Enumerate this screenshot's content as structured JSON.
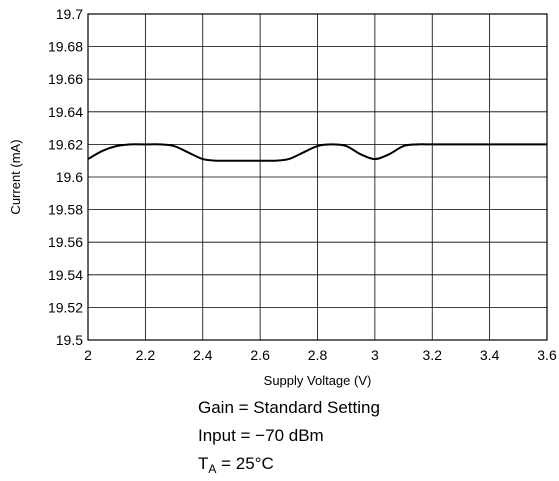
{
  "chart_data": {
    "type": "line",
    "xlabel": "Supply Voltage (V)",
    "ylabel": "Current (mA)",
    "xlim": [
      2,
      3.6
    ],
    "ylim": [
      19.5,
      19.7
    ],
    "x_ticks": [
      "2",
      "2.2",
      "2.4",
      "2.6",
      "2.8",
      "3",
      "3.2",
      "3.4",
      "3.6"
    ],
    "y_ticks": [
      "19.7",
      "19.68",
      "19.66",
      "19.64",
      "19.62",
      "19.6",
      "19.58",
      "19.56",
      "19.54",
      "19.52",
      "19.5"
    ],
    "grid": true,
    "series": [
      {
        "x": [
          2.0,
          2.05,
          2.1,
          2.15,
          2.2,
          2.25,
          2.3,
          2.35,
          2.4,
          2.45,
          2.5,
          2.55,
          2.6,
          2.65,
          2.7,
          2.75,
          2.8,
          2.85,
          2.9,
          2.95,
          3.0,
          3.05,
          3.1,
          3.15,
          3.2,
          3.3,
          3.4,
          3.5,
          3.6
        ],
        "y": [
          19.611,
          19.616,
          19.619,
          19.62,
          19.62,
          19.62,
          19.619,
          19.615,
          19.611,
          19.61,
          19.61,
          19.61,
          19.61,
          19.61,
          19.611,
          19.615,
          19.619,
          19.62,
          19.619,
          19.614,
          19.611,
          19.614,
          19.619,
          19.62,
          19.62,
          19.62,
          19.62,
          19.62,
          19.62
        ]
      }
    ]
  },
  "notes": {
    "gain": "Gain = Standard Setting",
    "input": "Input = −70 dBm",
    "ta_prefix": "T",
    "ta_sub": "A",
    "ta_rest": " = 25°C"
  }
}
